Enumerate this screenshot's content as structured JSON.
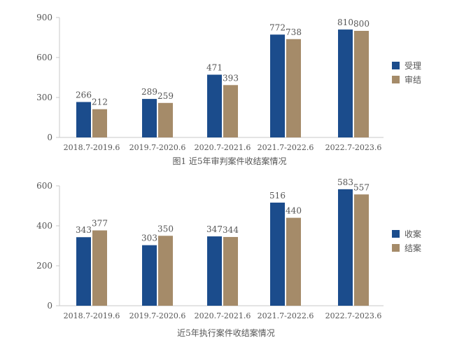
{
  "colors": {
    "series1": "#1b4c8c",
    "series2": "#a58b69",
    "axis": "#c8c8c8",
    "text": "#555555"
  },
  "chart_data": [
    {
      "type": "bar",
      "title": "图1 近5年审判案件收结案情况",
      "categories": [
        "2018.7-2019.6",
        "2019.7-2020.6",
        "2020.7-2021.6",
        "2021.7-2022.6",
        "2022.7-2023.6"
      ],
      "series": [
        {
          "name": "受理",
          "values": [
            266,
            289,
            471,
            772,
            810
          ]
        },
        {
          "name": "审结",
          "values": [
            212,
            259,
            393,
            738,
            800
          ]
        }
      ],
      "ylim": [
        0,
        900
      ],
      "yticks": [
        0,
        300,
        600,
        900
      ],
      "xlabel": "",
      "ylabel": "",
      "legend": "right",
      "grid": false
    },
    {
      "type": "bar",
      "title": "近5年执行案件收结案情况",
      "categories": [
        "2018.7-2019.6",
        "2019.7-2020.6",
        "2020.7-2021.6",
        "2021.7-2022.6",
        "2022.7-2023.6"
      ],
      "series": [
        {
          "name": "收案",
          "values": [
            343,
            303,
            347,
            516,
            583
          ]
        },
        {
          "name": "结案",
          "values": [
            377,
            350,
            344,
            440,
            557
          ]
        }
      ],
      "ylim": [
        0,
        600
      ],
      "yticks": [
        0,
        200,
        400,
        600
      ],
      "xlabel": "",
      "ylabel": "",
      "legend": "right",
      "grid": false
    }
  ]
}
